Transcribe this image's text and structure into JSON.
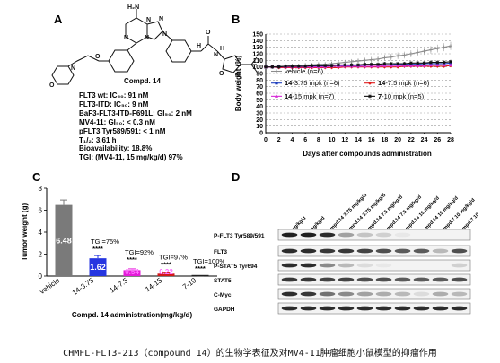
{
  "panels": {
    "a": {
      "label": "A",
      "compound_name": "Compd. 14",
      "structure_labels": [
        "H₂N",
        "N",
        "N",
        "N",
        "N",
        "N",
        "O",
        "O",
        "N",
        "H",
        "N",
        "H",
        "O",
        "N",
        "O"
      ],
      "lines": [
        "FLT3 wt: IC₅₀: 91 nM",
        "FLT3-ITD: IC₅₀: 9 nM",
        "BaF3-FLT3-ITD-F691L: GI₅₀: 2 nM",
        "MV4-11: GI₅₀: < 0.3 nM",
        "pFLT3 Tyr589/591: < 1 nM",
        "T₁/₂: 3.61 h",
        "Bioavailability: 18.8%",
        "TGI: (MV4-11, 15 mg/kg/d) 97%"
      ]
    },
    "b": {
      "label": "B"
    },
    "c": {
      "label": "C"
    },
    "d": {
      "label": "D",
      "column_labels": [
        "0 mg/kg/d",
        "0 mg/kg/d",
        "Compd.14 3.75 mg/kg/d",
        "Compd.14 3.75 mg/kg/d",
        "Compd.14 7.5 mg/kg/d",
        "Compd.14 7.5 mg/kg/d",
        "Compd.14 15 mg/kg/d",
        "Compd.14 15 mg/kg/d",
        "Compd.7 10 mg/kg/d",
        "Compd.7 10 mg/kg/d"
      ],
      "row_labels": [
        "P-FLT3 Tyr589/591",
        "FLT3",
        "P-STAT5 Tyr694",
        "STAT5",
        "C-Myc",
        "GAPDH"
      ],
      "band_intensity": [
        [
          0.95,
          0.95,
          0.9,
          0.4,
          0.25,
          0.2,
          0.1,
          0.05,
          0.05,
          0.05
        ],
        [
          0.9,
          0.9,
          0.85,
          0.85,
          0.8,
          0.75,
          0.7,
          0.7,
          0.3,
          0.75
        ],
        [
          0.9,
          0.9,
          0.5,
          0.3,
          0.15,
          0.1,
          0.05,
          0.05,
          0.05,
          0.2
        ],
        [
          0.85,
          0.85,
          0.8,
          0.8,
          0.75,
          0.75,
          0.7,
          0.7,
          0.7,
          0.75
        ],
        [
          0.9,
          0.85,
          0.6,
          0.5,
          0.4,
          0.35,
          0.3,
          0.15,
          0.35,
          0.3
        ],
        [
          0.9,
          0.9,
          0.9,
          0.9,
          0.9,
          0.9,
          0.9,
          0.9,
          0.9,
          0.9
        ]
      ]
    }
  },
  "chart_data": [
    {
      "type": "line",
      "panel": "B",
      "title": "",
      "xlabel": "Days after compounds administration",
      "ylabel": "Body weight (%)",
      "xlim": [
        0,
        28
      ],
      "ylim": [
        0,
        150
      ],
      "x_ticks": [
        0,
        2,
        4,
        6,
        8,
        10,
        12,
        14,
        16,
        18,
        20,
        22,
        24,
        26,
        28
      ],
      "y_ticks": [
        0,
        10,
        20,
        30,
        40,
        50,
        60,
        70,
        80,
        90,
        100,
        110,
        120,
        130,
        140,
        150
      ],
      "grid": true,
      "x": [
        0,
        1,
        2,
        3,
        4,
        5,
        6,
        7,
        8,
        9,
        10,
        11,
        12,
        13,
        14,
        15,
        16,
        17,
        18,
        19,
        20,
        21,
        22,
        23,
        24,
        25,
        26,
        27,
        28
      ],
      "series": [
        {
          "name": "vehicle (n=6)",
          "name_bold": "",
          "name_rest": "vehicle (n=6)",
          "color": "#8c8c8c",
          "marker": "+",
          "values": [
            100,
            100,
            101,
            101,
            102,
            102,
            103,
            103,
            104,
            104,
            105,
            106,
            107,
            108,
            109,
            110,
            111,
            112,
            114,
            115,
            117,
            118,
            120,
            122,
            124,
            126,
            128,
            130,
            132
          ]
        },
        {
          "name": "14-3.75 mpk (n=6)",
          "name_bold": "14",
          "name_rest": "-3.75 mpk (n=6)",
          "color": "#1f3fbf",
          "marker": "square",
          "values": [
            100,
            100,
            100,
            100,
            100,
            101,
            101,
            101,
            101,
            101,
            102,
            102,
            102,
            102,
            102,
            103,
            103,
            103,
            103,
            103,
            104,
            104,
            104,
            104,
            105,
            105,
            105,
            105,
            106
          ]
        },
        {
          "name": "14-7.5 mpk (n=6)",
          "name_bold": "14",
          "name_rest": "-7.5 mpk (n=6)",
          "color": "#e01b1b",
          "marker": "diamond",
          "values": [
            100,
            100,
            99,
            99,
            99,
            99,
            99,
            99,
            99,
            99,
            99,
            99,
            100,
            100,
            100,
            100,
            100,
            100,
            100,
            100,
            100,
            101,
            101,
            101,
            101,
            101,
            101,
            101,
            102
          ]
        },
        {
          "name": "14-15 mpk (n=7)",
          "name_bold": "14",
          "name_rest": "-15 mpk (n=7)",
          "color": "#d62bd6",
          "marker": "triangle",
          "values": [
            100,
            100,
            100,
            100,
            100,
            100,
            100,
            100,
            100,
            100,
            101,
            101,
            101,
            101,
            101,
            101,
            101,
            101,
            102,
            102,
            102,
            102,
            102,
            102,
            102,
            103,
            103,
            103,
            103
          ]
        },
        {
          "name": "7-10 mpk (n=5)",
          "name_bold": "7",
          "name_rest": "-10 mpk (n=5)",
          "color": "#111111",
          "marker": "star",
          "values": [
            100,
            100,
            100,
            101,
            101,
            101,
            101,
            102,
            102,
            102,
            102,
            103,
            103,
            103,
            103,
            104,
            104,
            104,
            105,
            105,
            105,
            105,
            106,
            106,
            106,
            107,
            107,
            107,
            108
          ]
        }
      ]
    },
    {
      "type": "bar",
      "panel": "C",
      "title": "",
      "xlabel": "Compd. 14 administration(mg/kg/d)",
      "ylabel": "Tumor weight (g)",
      "ylim": [
        0,
        8
      ],
      "y_ticks": [
        0,
        2,
        4,
        6,
        8
      ],
      "categories": [
        "vehicle",
        "14-3.75",
        "14-7.5",
        "14-15",
        "7-10"
      ],
      "values": [
        6.48,
        1.62,
        0.54,
        0.22,
        0.01
      ],
      "value_labels": [
        "6.48",
        "1.62",
        "0.54",
        "0.22",
        ""
      ],
      "errors": [
        0.45,
        0.25,
        0.12,
        0.06,
        0.01
      ],
      "colors": [
        "#7a7a7a",
        "#2535e0",
        "#e31cd8",
        "#d21818",
        "#222222"
      ],
      "annotations": [
        {
          "category": "14-3.75",
          "tgi": "TGI=75%",
          "sig": "****"
        },
        {
          "category": "14-7.5",
          "tgi": "TGI=92%",
          "sig": "****"
        },
        {
          "category": "14-15",
          "tgi": "TGI=97%",
          "sig": "****"
        },
        {
          "category": "7-10",
          "tgi": "TGI=100%",
          "sig": "****"
        }
      ]
    }
  ],
  "caption": "CHMFL-FLT3-213（compound 14）的生物学表征及对MV4-11肿瘤细胞小鼠模型的抑瘤作用"
}
